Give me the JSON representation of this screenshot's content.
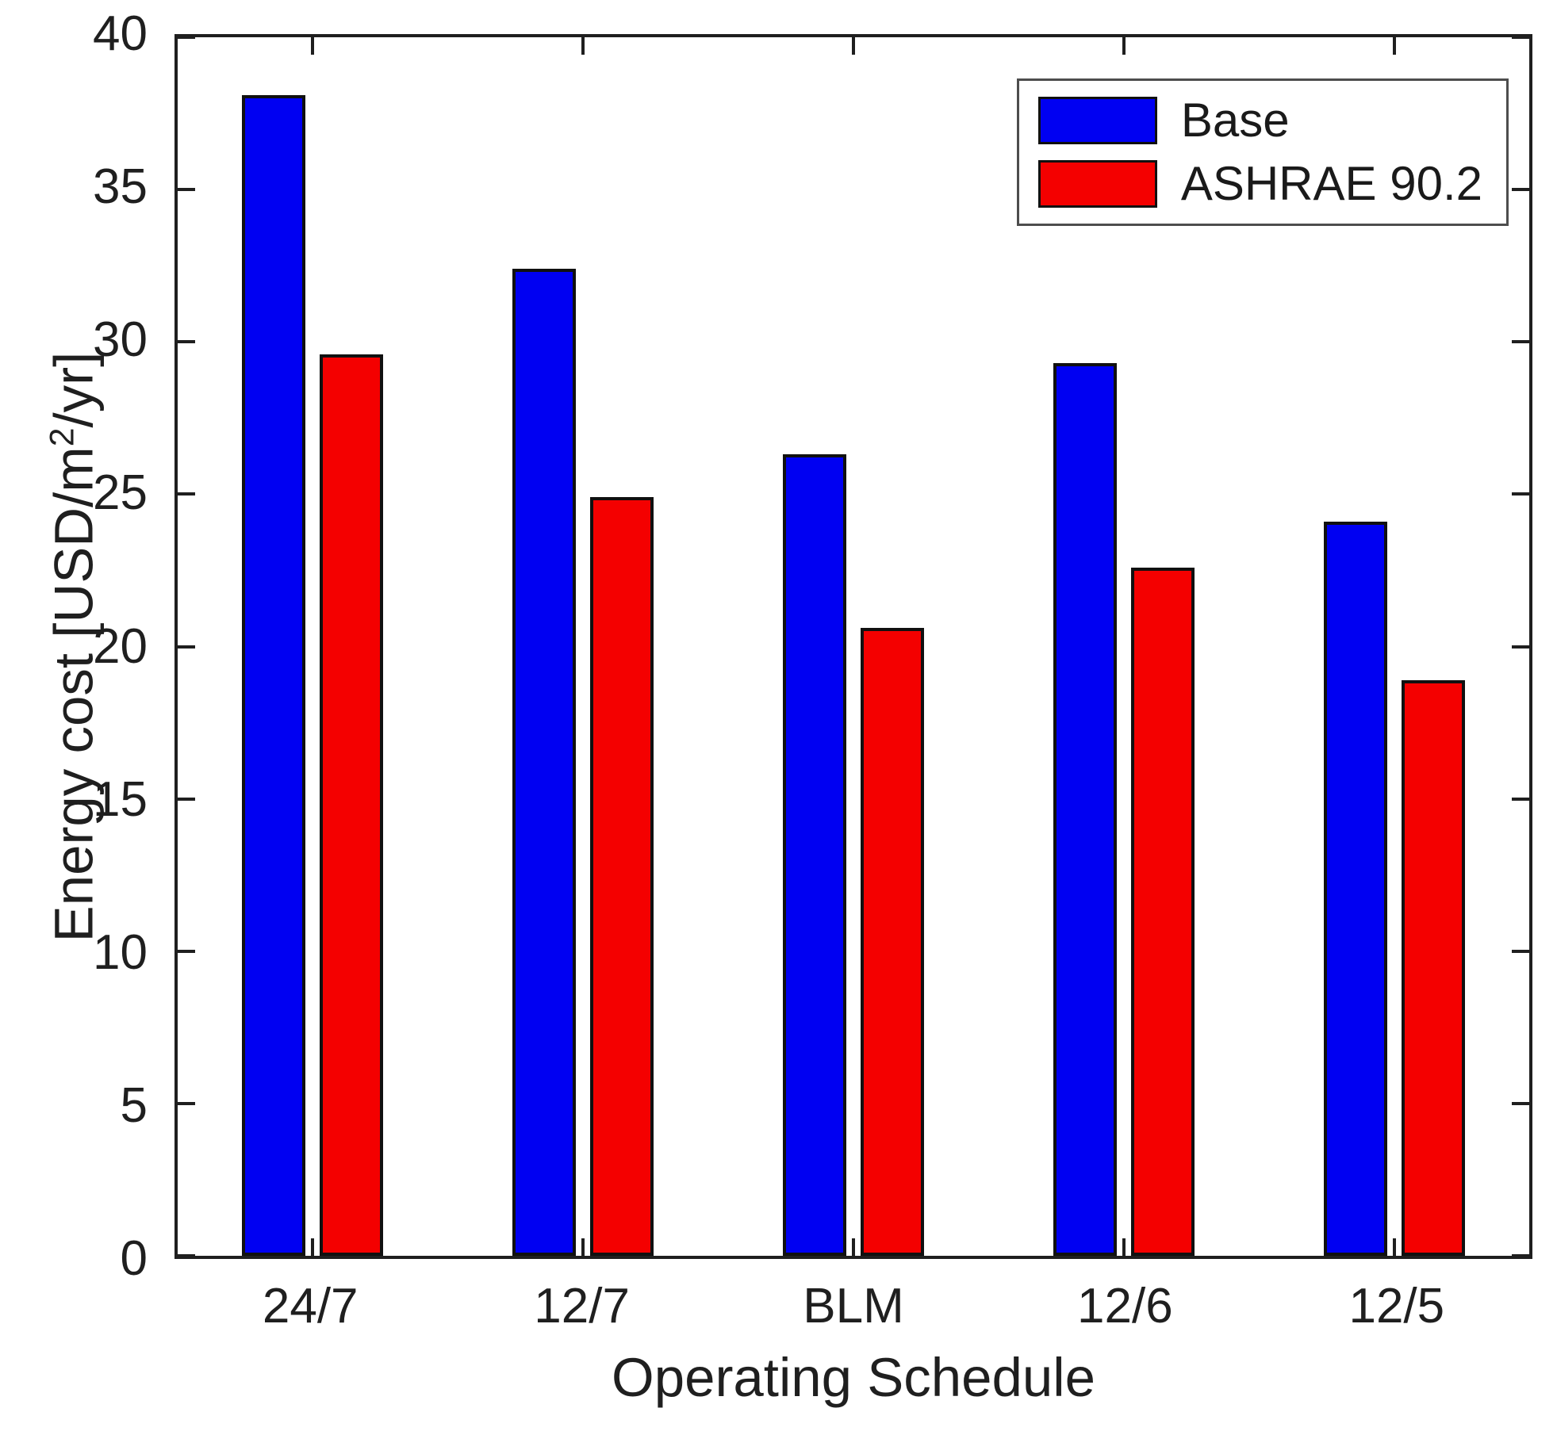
{
  "figure": {
    "background": "#ffffff",
    "axis_color": "#1f1f1f"
  },
  "chart_data": {
    "type": "bar",
    "categories": [
      "24/7",
      "12/7",
      "BLM",
      "12/6",
      "12/5"
    ],
    "series": [
      {
        "name": "Base",
        "color": "#0000f2",
        "values": [
          38.1,
          32.4,
          26.3,
          29.3,
          24.1
        ]
      },
      {
        "name": "ASHRAE 90.2",
        "color": "#f40000",
        "values": [
          29.6,
          24.9,
          20.6,
          22.6,
          18.9
        ]
      }
    ],
    "title": "",
    "xlabel": "Operating Schedule",
    "ylabel": "Energy cost [USD/m2/yr]",
    "ylabel_parts": {
      "pre": "Energy cost [USD/m",
      "sup": "2",
      "post": "/yr]"
    },
    "ylim": [
      0,
      40
    ],
    "yticks": [
      0,
      5,
      10,
      15,
      20,
      25,
      30,
      35,
      40
    ],
    "bar_edge_color": "#101010",
    "grid": false,
    "legend": {
      "position": "top-right"
    }
  }
}
